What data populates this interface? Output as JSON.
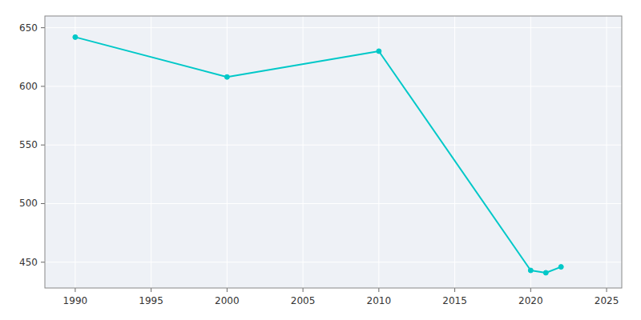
{
  "chart_data": {
    "type": "line",
    "x": [
      1990,
      2000,
      2010,
      2020,
      2021,
      2022
    ],
    "values": [
      642,
      608,
      630,
      443,
      441,
      446
    ],
    "color": "#00c8c8",
    "marker": "circle",
    "xlim": [
      1988,
      2026
    ],
    "ylim": [
      428,
      660
    ],
    "xticks": [
      1990,
      1995,
      2000,
      2005,
      2010,
      2015,
      2020,
      2025
    ],
    "yticks": [
      450,
      500,
      550,
      600,
      650
    ],
    "grid": true
  }
}
